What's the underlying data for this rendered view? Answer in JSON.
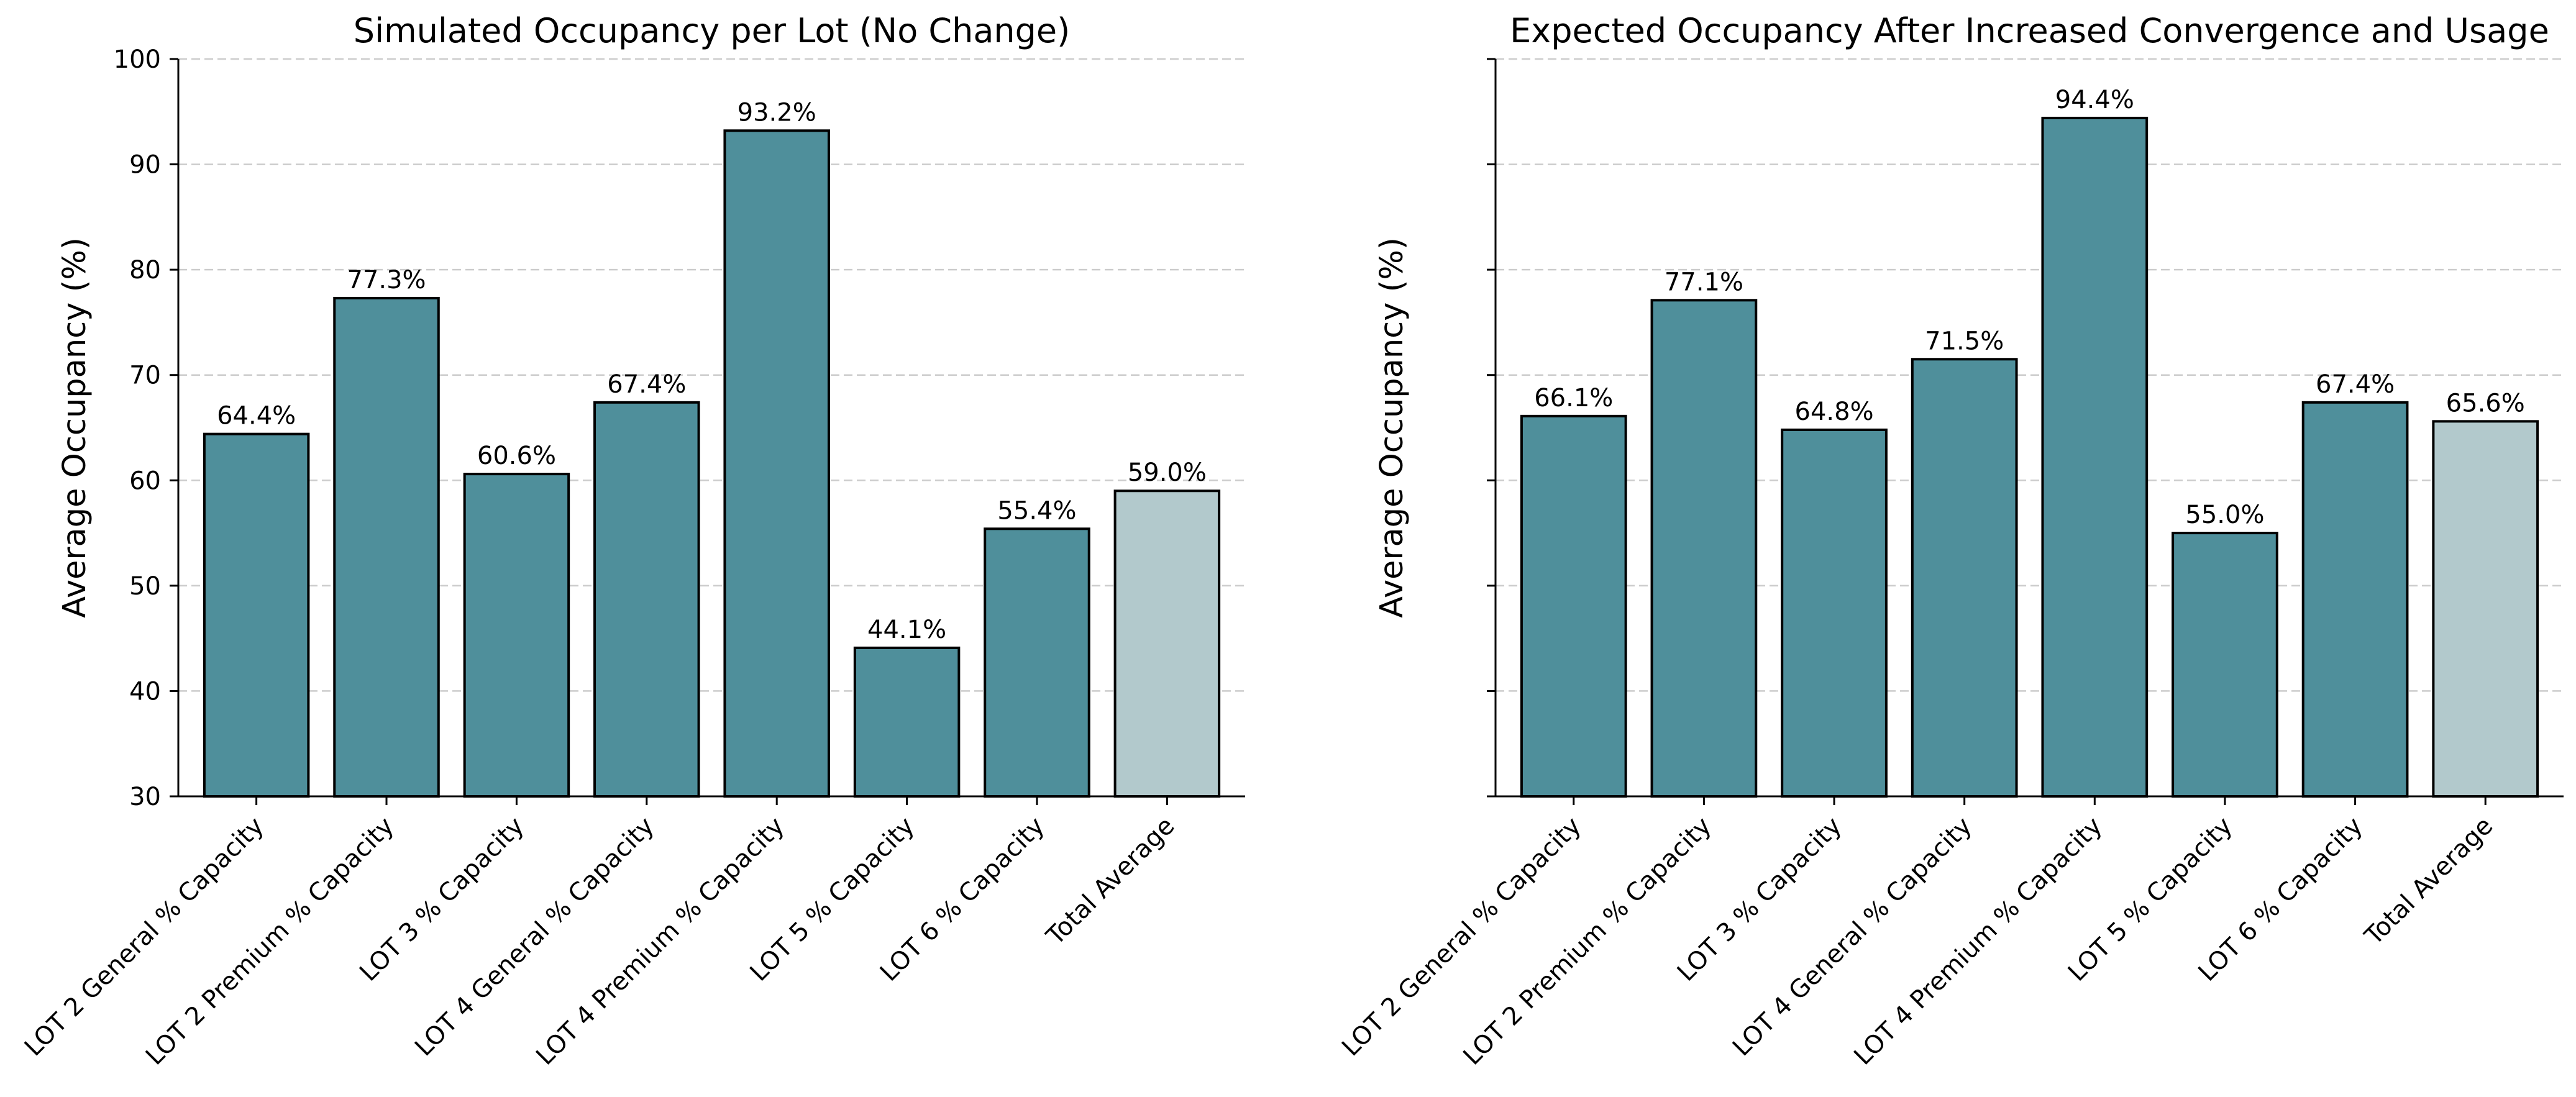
{
  "colors": {
    "bar": "#4f8f9b",
    "bar_highlight": "#b2c9cc",
    "bar_edge": "#000000",
    "grid": "#cccccc"
  },
  "chart_data": [
    {
      "type": "bar",
      "title": "Simulated Occupancy per Lot (No Change)",
      "xlabel": "",
      "ylabel": "Average Occupancy (%)",
      "ylim": [
        30,
        100
      ],
      "yticks": [
        30,
        40,
        50,
        60,
        70,
        80,
        90,
        100
      ],
      "show_ytick_labels": true,
      "grid": "y-dashed",
      "categories": [
        "LOT 2 General % Capacity",
        "LOT 2 Premium % Capacity",
        "LOT 3 % Capacity",
        "LOT 4 General % Capacity",
        "LOT 4 Premium % Capacity",
        "LOT 5 % Capacity",
        "LOT 6 % Capacity",
        "Total Average"
      ],
      "values": [
        64.4,
        77.3,
        60.6,
        67.4,
        93.2,
        44.1,
        55.4,
        59.0
      ],
      "data_labels": [
        "64.4%",
        "77.3%",
        "60.6%",
        "67.4%",
        "93.2%",
        "44.1%",
        "55.4%",
        "59.0%"
      ],
      "highlight_index": 7
    },
    {
      "type": "bar",
      "title": "Expected Occupancy After Increased Convergence and Usage",
      "xlabel": "",
      "ylabel": "Average Occupancy (%)",
      "ylim": [
        30,
        100
      ],
      "yticks": [
        30,
        40,
        50,
        60,
        70,
        80,
        90,
        100
      ],
      "show_ytick_labels": false,
      "grid": "y-dashed",
      "categories": [
        "LOT 2 General % Capacity",
        "LOT 2 Premium % Capacity",
        "LOT 3 % Capacity",
        "LOT 4 General % Capacity",
        "LOT 4 Premium % Capacity",
        "LOT 5 % Capacity",
        "LOT 6 % Capacity",
        "Total Average"
      ],
      "values": [
        66.1,
        77.1,
        64.8,
        71.5,
        94.4,
        55.0,
        67.4,
        65.6
      ],
      "data_labels": [
        "66.1%",
        "77.1%",
        "64.8%",
        "71.5%",
        "94.4%",
        "55.0%",
        "67.4%",
        "65.6%"
      ],
      "highlight_index": 7
    }
  ]
}
